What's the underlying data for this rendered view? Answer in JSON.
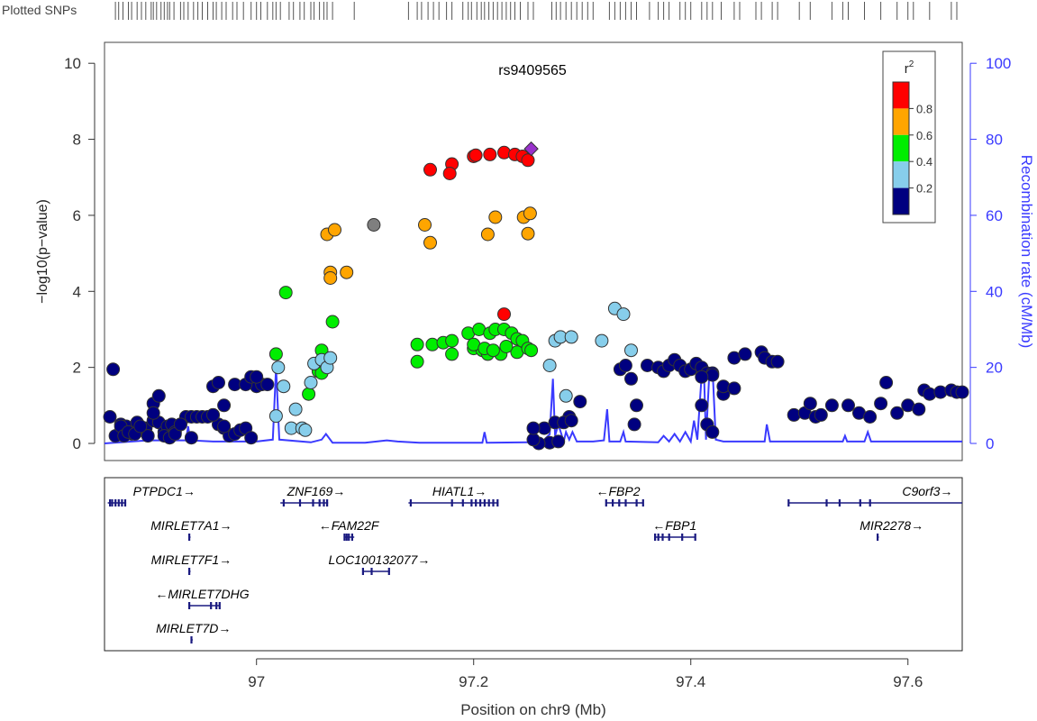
{
  "chart_data": {
    "type": "scatter",
    "top_label": "Plotted SNPs",
    "title": "rs9409565",
    "xlabel": "Position on chr9 (Mb)",
    "ylabel_left": "−log10(p−value)",
    "ylabel_right": "Recombination rate (cM/Mb)",
    "xlim": [
      96.86,
      97.65
    ],
    "ylim": [
      -0.45,
      10.55
    ],
    "y2lim": [
      -4.5,
      105.5
    ],
    "x_ticks": [
      "97",
      "97.2",
      "97.4",
      "97.6"
    ],
    "y_ticks": [
      "0",
      "2",
      "4",
      "6",
      "8",
      "10"
    ],
    "y2_ticks": [
      "0",
      "20",
      "40",
      "60",
      "80",
      "100"
    ],
    "legend": {
      "title": "r2",
      "position": "top-right",
      "labels": [
        "0.8",
        "0.6",
        "0.4",
        "0.2"
      ],
      "colors": [
        "#ff0000",
        "#ffa500",
        "#00ee00",
        "#87ceeb",
        "#000080"
      ]
    },
    "colors": {
      "r2_lead": "#9932cc",
      "r2_0.8_1.0": "#ff0000",
      "r2_0.6_0.8": "#ffa500",
      "r2_0.4_0.6": "#00ee00",
      "r2_0.2_0.4": "#87ceeb",
      "r2_0.0_0.2": "#000080",
      "r2_na": "#7f7f7f",
      "recombination": "#3a3aff"
    },
    "series": [
      {
        "name": "0.8–1.0",
        "color": "#ff0000",
        "x": [
          97.16,
          97.18,
          97.178,
          97.2,
          97.202,
          97.215,
          97.228,
          97.238,
          97.245,
          97.25,
          97.228
        ],
        "y": [
          7.2,
          7.35,
          7.1,
          7.55,
          7.58,
          7.6,
          7.65,
          7.6,
          7.55,
          7.45,
          3.4
        ]
      },
      {
        "name": "0.6–0.8",
        "color": "#ffa500",
        "x": [
          97.065,
          97.072,
          97.068,
          97.068,
          97.083,
          97.155,
          97.16,
          97.22,
          97.213,
          97.246,
          97.252,
          97.25
        ],
        "y": [
          5.5,
          5.62,
          4.5,
          4.35,
          4.5,
          5.75,
          5.28,
          5.95,
          5.5,
          5.95,
          6.05,
          5.52
        ]
      },
      {
        "name": "0.4–0.6",
        "color": "#00ee00",
        "x": [
          97.018,
          97.027,
          97.057,
          97.06,
          97.06,
          97.07,
          97.048,
          97.148,
          97.148,
          97.162,
          97.172,
          97.18,
          97.18,
          97.195,
          97.2,
          97.205,
          97.208,
          97.213,
          97.215,
          97.22,
          97.225,
          97.228,
          97.235,
          97.24,
          97.24,
          97.2,
          97.21,
          97.218,
          97.23,
          97.245,
          97.25,
          97.253
        ],
        "y": [
          2.35,
          3.97,
          1.9,
          1.85,
          2.45,
          3.2,
          1.3,
          2.6,
          2.15,
          2.6,
          2.65,
          2.7,
          2.35,
          2.9,
          2.5,
          3.0,
          2.45,
          2.35,
          2.9,
          3.0,
          2.35,
          3.0,
          2.9,
          2.75,
          2.4,
          2.6,
          2.5,
          2.45,
          2.55,
          2.7,
          2.5,
          2.45
        ]
      },
      {
        "name": "0.2–0.4",
        "color": "#87ceeb",
        "x": [
          97.02,
          97.025,
          97.032,
          97.018,
          97.042,
          97.045,
          97.05,
          97.053,
          97.06,
          97.065,
          97.068,
          97.036,
          97.27,
          97.275,
          97.28,
          97.285,
          97.29,
          97.318,
          97.33,
          97.338,
          97.345
        ],
        "y": [
          2.0,
          1.5,
          0.4,
          0.72,
          0.4,
          0.35,
          1.6,
          2.1,
          2.2,
          2.0,
          2.25,
          0.9,
          2.05,
          2.7,
          2.8,
          1.25,
          2.8,
          2.7,
          3.55,
          3.4,
          2.45
        ]
      },
      {
        "name": "0.0–0.2",
        "color": "#000080",
        "x": [
          96.865,
          96.87,
          96.875,
          96.868,
          96.88,
          96.885,
          96.89,
          96.893,
          96.898,
          96.9,
          96.905,
          96.91,
          96.915,
          96.918,
          96.922,
          96.925,
          96.93,
          96.935,
          96.94,
          96.945,
          96.95,
          96.955,
          96.96,
          96.965,
          96.97,
          96.975,
          96.98,
          96.985,
          96.99,
          96.995,
          97.0,
          97.005,
          97.01,
          96.905,
          96.91,
          96.915,
          96.92,
          96.925,
          96.93,
          96.96,
          96.965,
          96.97,
          96.98,
          96.99,
          96.995,
          97.0,
          96.875,
          96.878,
          96.882,
          96.888,
          96.893,
          96.905,
          96.94,
          96.96,
          96.97,
          97.265,
          97.27,
          97.278,
          97.288,
          97.298,
          97.26,
          97.275,
          97.283,
          97.29,
          97.335,
          97.34,
          97.345,
          97.348,
          97.35,
          97.36,
          97.37,
          97.375,
          97.38,
          97.385,
          97.39,
          97.395,
          97.4,
          97.405,
          97.41,
          97.415,
          97.42,
          97.43,
          97.44,
          97.45,
          97.465,
          97.468,
          97.475,
          97.48,
          97.495,
          97.505,
          97.51,
          97.515,
          97.52,
          97.53,
          97.545,
          97.555,
          97.565,
          97.575,
          97.58,
          97.59,
          97.6,
          97.61,
          97.615,
          97.62,
          97.63,
          97.64,
          97.645,
          97.65,
          97.41,
          97.415,
          97.42,
          97.255,
          97.255,
          97.42,
          97.41,
          97.43,
          97.44
        ],
        "y": [
          0.7,
          0.2,
          0.5,
          1.95,
          0.45,
          0.25,
          0.55,
          0.35,
          0.4,
          0.2,
          0.6,
          0.55,
          0.3,
          0.45,
          0.5,
          0.3,
          0.5,
          0.7,
          0.7,
          0.7,
          0.7,
          0.7,
          0.75,
          0.5,
          0.4,
          0.2,
          0.25,
          0.35,
          0.4,
          0.15,
          1.5,
          1.55,
          1.55,
          1.05,
          1.25,
          0.2,
          0.15,
          0.25,
          0.5,
          1.5,
          1.6,
          1.0,
          1.55,
          1.55,
          1.75,
          1.75,
          0.45,
          0.2,
          0.3,
          0.25,
          0.45,
          0.8,
          0.15,
          0.75,
          0.45,
          0.4,
          0.02,
          0.05,
          0.7,
          1.1,
          0.0,
          0.55,
          0.55,
          0.6,
          1.95,
          2.05,
          1.7,
          0.5,
          1.0,
          2.05,
          2.0,
          1.9,
          2.05,
          2.2,
          2.05,
          1.9,
          1.95,
          2.1,
          2.0,
          1.85,
          1.85,
          1.3,
          2.25,
          2.35,
          2.4,
          2.25,
          2.15,
          2.15,
          0.75,
          0.8,
          1.05,
          0.7,
          0.75,
          1.0,
          1.0,
          0.8,
          0.7,
          1.05,
          1.6,
          0.8,
          1.0,
          0.9,
          1.4,
          1.3,
          1.35,
          1.4,
          1.35,
          1.35,
          1.0,
          0.5,
          0.3,
          0.1,
          0.4,
          1.8,
          1.75,
          1.5,
          1.45
        ]
      },
      {
        "name": "NA",
        "color": "#7f7f7f",
        "x": [
          97.108
        ],
        "y": [
          5.75
        ]
      },
      {
        "name": "rs9409565",
        "color": "#9932cc",
        "x": [
          97.253
        ],
        "y": [
          7.75
        ]
      }
    ],
    "recombination_rate": {
      "x": [
        96.86,
        96.9,
        96.935,
        96.937,
        96.939,
        96.96,
        97.0,
        97.015,
        97.018,
        97.021,
        97.05,
        97.06,
        97.064,
        97.07,
        97.1,
        97.12,
        97.13,
        97.15,
        97.2,
        97.208,
        97.21,
        97.212,
        97.25,
        97.265,
        97.27,
        97.273,
        97.275,
        97.278,
        97.283,
        97.285,
        97.288,
        97.291,
        97.295,
        97.3,
        97.31,
        97.32,
        97.323,
        97.325,
        97.328,
        97.335,
        97.338,
        97.34,
        97.37,
        97.375,
        97.38,
        97.385,
        97.39,
        97.395,
        97.4,
        97.403,
        97.406,
        97.41,
        97.412,
        97.414,
        97.417,
        97.42,
        97.423,
        97.43,
        97.455,
        97.468,
        97.47,
        97.473,
        97.5,
        97.54,
        97.542,
        97.544,
        97.56,
        97.563,
        97.566,
        97.6,
        97.62,
        97.64,
        97.65
      ],
      "y": [
        0,
        0.8,
        0.8,
        4.5,
        0.8,
        0.5,
        0.5,
        1,
        20,
        1,
        0.3,
        1,
        2.5,
        0.2,
        0.2,
        0.8,
        0.5,
        0.2,
        0.2,
        0.2,
        3,
        0.2,
        0.3,
        1,
        2.4,
        17,
        2,
        5,
        0.5,
        3,
        1,
        3,
        0.5,
        0.5,
        0.5,
        0.8,
        9,
        0.5,
        0.5,
        0.5,
        3,
        0.5,
        0.3,
        2,
        0.5,
        2.5,
        0.5,
        3,
        0.5,
        6,
        1,
        18,
        20,
        1,
        18,
        20,
        1,
        0.5,
        0.5,
        0.5,
        5,
        0.5,
        0.5,
        0.5,
        2,
        0.5,
        0.5,
        3,
        0.5,
        0.5,
        0.5,
        0.5,
        0.5
      ]
    },
    "plotted_snps": [
      96.87,
      96.873,
      96.877,
      96.882,
      96.885,
      96.89,
      96.894,
      96.898,
      96.903,
      96.905,
      96.908,
      96.912,
      96.915,
      96.918,
      96.92,
      96.924,
      96.93,
      96.933,
      96.937,
      96.942,
      96.946,
      96.95,
      96.955,
      96.96,
      96.963,
      96.968,
      96.972,
      96.978,
      96.982,
      96.988,
      96.995,
      97.0,
      97.004,
      97.01,
      97.015,
      97.018,
      97.022,
      97.03,
      97.034,
      97.04,
      97.044,
      97.05,
      97.053,
      97.058,
      97.062,
      97.065,
      97.07,
      97.09,
      97.14,
      97.148,
      97.152,
      97.158,
      97.163,
      97.168,
      97.175,
      97.18,
      97.19,
      97.195,
      97.198,
      97.203,
      97.207,
      97.21,
      97.214,
      97.218,
      97.222,
      97.226,
      97.23,
      97.234,
      97.238,
      97.243,
      97.25,
      97.255,
      97.272,
      97.276,
      97.28,
      97.285,
      97.29,
      97.295,
      97.3,
      97.305,
      97.31,
      97.325,
      97.33,
      97.335,
      97.34,
      97.345,
      97.35,
      97.362,
      97.37,
      97.375,
      97.38,
      97.39,
      97.395,
      97.4,
      97.41,
      97.415,
      97.42,
      97.428,
      97.44,
      97.445,
      97.46,
      97.465,
      97.475,
      97.48,
      97.5,
      97.51,
      97.53,
      97.54,
      97.545,
      97.56,
      97.575,
      97.59,
      97.6,
      97.605,
      97.62,
      97.64,
      97.645
    ],
    "genes": [
      {
        "name": "PTPDC1→",
        "label_x": 96.915,
        "row": 0,
        "start": 96.863,
        "end": 96.88,
        "exons": [
          96.865,
          96.867,
          96.87,
          96.873,
          96.876,
          96.879
        ]
      },
      {
        "name": "ZNF169→",
        "label_x": 97.055,
        "row": 0,
        "start": 97.022,
        "end": 97.066,
        "exons": [
          97.025,
          97.04,
          97.052,
          97.058,
          97.062,
          97.065
        ]
      },
      {
        "name": "HIATL1→",
        "label_x": 97.187,
        "row": 0,
        "start": 97.14,
        "end": 97.223,
        "exons": [
          97.142,
          97.18,
          97.19,
          97.198,
          97.202,
          97.206,
          97.21,
          97.214,
          97.218,
          97.222
        ]
      },
      {
        "name": "←FBP2",
        "label_x": 97.333,
        "row": 0,
        "start": 97.322,
        "end": 97.356,
        "exons": [
          97.322,
          97.328,
          97.334,
          97.34,
          97.35,
          97.356
        ]
      },
      {
        "name": "C9orf3→",
        "label_x": 97.618,
        "row": 0,
        "start": 97.49,
        "end": 97.65,
        "exons": [
          97.49,
          97.525,
          97.537,
          97.556,
          97.565
        ]
      },
      {
        "name": "MIRLET7A1→",
        "label_x": 96.94,
        "row": 1,
        "start": 96.938,
        "end": 96.9385,
        "exons": [
          96.938
        ]
      },
      {
        "name": "←FAM22F",
        "label_x": 97.085,
        "row": 1,
        "start": 97.081,
        "end": 97.09,
        "exons": [
          97.081,
          97.083,
          97.085,
          97.088
        ]
      },
      {
        "name": "←FBP1",
        "label_x": 97.385,
        "row": 1,
        "start": 97.367,
        "end": 97.404,
        "exons": [
          97.367,
          97.37,
          97.374,
          97.38,
          97.392,
          97.404
        ]
      },
      {
        "name": "MIR2278→",
        "label_x": 97.585,
        "row": 1,
        "start": 97.572,
        "end": 97.5725,
        "exons": [
          97.572
        ]
      },
      {
        "name": "MIRLET7F1→",
        "label_x": 96.94,
        "row": 2,
        "start": 96.938,
        "end": 96.9385,
        "exons": [
          96.938
        ]
      },
      {
        "name": "LOC100132077→",
        "label_x": 97.113,
        "row": 2,
        "start": 97.098,
        "end": 97.123,
        "exons": [
          97.098,
          97.106,
          97.122
        ]
      },
      {
        "name": "←MIRLET7DHG",
        "label_x": 96.95,
        "row": 3,
        "start": 96.938,
        "end": 96.966,
        "exons": [
          96.938,
          96.958,
          96.963,
          96.966
        ]
      },
      {
        "name": "MIRLET7D→",
        "label_x": 96.942,
        "row": 4,
        "start": 96.94,
        "end": 96.9405,
        "exons": [
          96.94
        ]
      }
    ]
  }
}
